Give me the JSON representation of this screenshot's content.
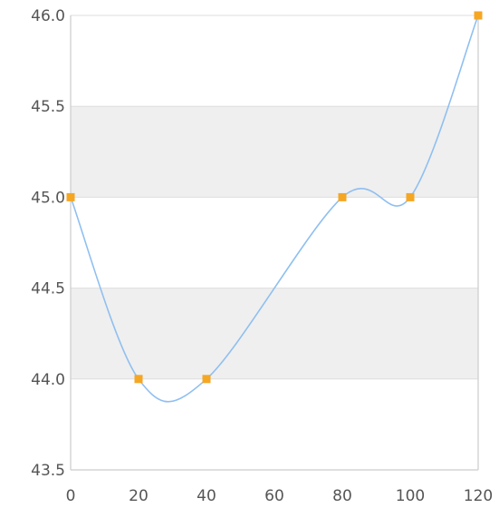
{
  "chart_data": {
    "type": "line",
    "x": [
      0,
      20,
      40,
      80,
      100,
      120
    ],
    "series": [
      {
        "values": [
          45.0,
          44.0,
          44.0,
          45.0,
          45.0,
          46.0
        ],
        "line_color": "#8fbff0",
        "marker_color": "#f5a623",
        "marker": "square"
      }
    ],
    "title": "",
    "xlabel": "",
    "ylabel": "",
    "xlim": [
      0,
      120
    ],
    "ylim": [
      43.5,
      46.0
    ],
    "xticks": [
      0,
      20,
      40,
      60,
      80,
      100,
      120
    ],
    "xtick_labels": [
      "0",
      "20",
      "40",
      "60",
      "80",
      "100",
      "120"
    ],
    "yticks": [
      43.5,
      44.0,
      44.5,
      45.0,
      45.5,
      46.0
    ],
    "ytick_labels": [
      "43.5",
      "44.0",
      "44.5",
      "45.0",
      "45.5",
      "46.0"
    ],
    "alternating_bands": [
      [
        44.0,
        44.5
      ],
      [
        45.0,
        45.5
      ]
    ],
    "band_color": "#efefef",
    "grid": true,
    "grid_color": "#dddddd",
    "axis_color": "#cccccc",
    "smooth": true,
    "legend": false
  }
}
